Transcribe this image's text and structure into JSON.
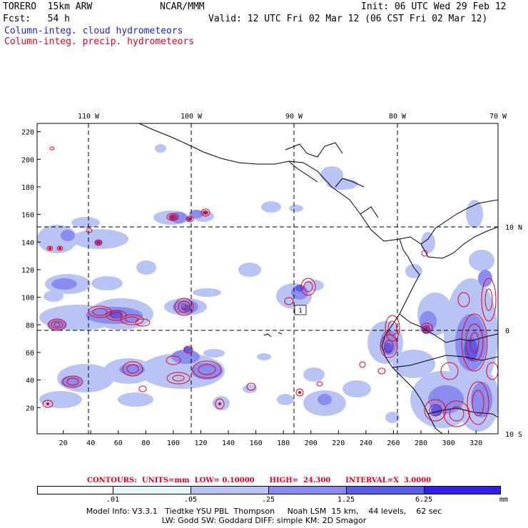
{
  "header": {
    "model": "TORERO  15km ARW",
    "org": "NCAR/MMM",
    "init": "Init: 06 UTC Wed 29 Feb 12",
    "fcst": "Fcst:   54 h",
    "valid": "Valid: 12 UTC Fri 02 Mar 12 (06 CST Fri 02 Mar 12)",
    "legend_cloud": "Column-integ. cloud hydrometeors",
    "legend_precip": "Column-integ. precip. hydrometeors"
  },
  "map": {
    "lon_labels": [
      "110 W",
      "100 W",
      "90 W",
      "80 W",
      "70 W"
    ],
    "lat_labels": [
      "10 N",
      "0",
      "10 S"
    ],
    "x_ticks": [
      "20",
      "40",
      "60",
      "80",
      "100",
      "120",
      "140",
      "160",
      "180",
      "200",
      "220",
      "240",
      "260",
      "280",
      "300",
      "320"
    ],
    "y_ticks": [
      "20",
      "40",
      "60",
      "80",
      "100",
      "120",
      "140",
      "160",
      "180",
      "200",
      "220"
    ],
    "contour_labels": [
      "1"
    ]
  },
  "contours_info": {
    "text": "CONTOURS:  UNITS=mm  LOW= 0.10000      HIGH=  24.300      INTERVAL=X  3.0000"
  },
  "colorbar": {
    "labels": [
      ".01",
      ".05",
      ".25",
      "1.25",
      "6.25"
    ],
    "units": "mm",
    "colors": [
      "#ffffff",
      "#e4f8fc",
      "#b8c4f4",
      "#8a8cf0",
      "#5a5cea",
      "#2d1ee8"
    ]
  },
  "footer": {
    "line1": "Model Info: V3.3.1   Tiedtke YSU PBL  Thompson     Noah LSM  15 km,    44 levels,    62 sec",
    "line2": "LW: Godd SW: Goddard DIFF: simple KM: 2D Smagor"
  },
  "colors": {
    "cloud_light": "#b8c4f4",
    "cloud_mid": "#8a8cf0",
    "cloud_dark": "#5a5cea",
    "precip": "#e8001e",
    "grid": "#000000"
  }
}
